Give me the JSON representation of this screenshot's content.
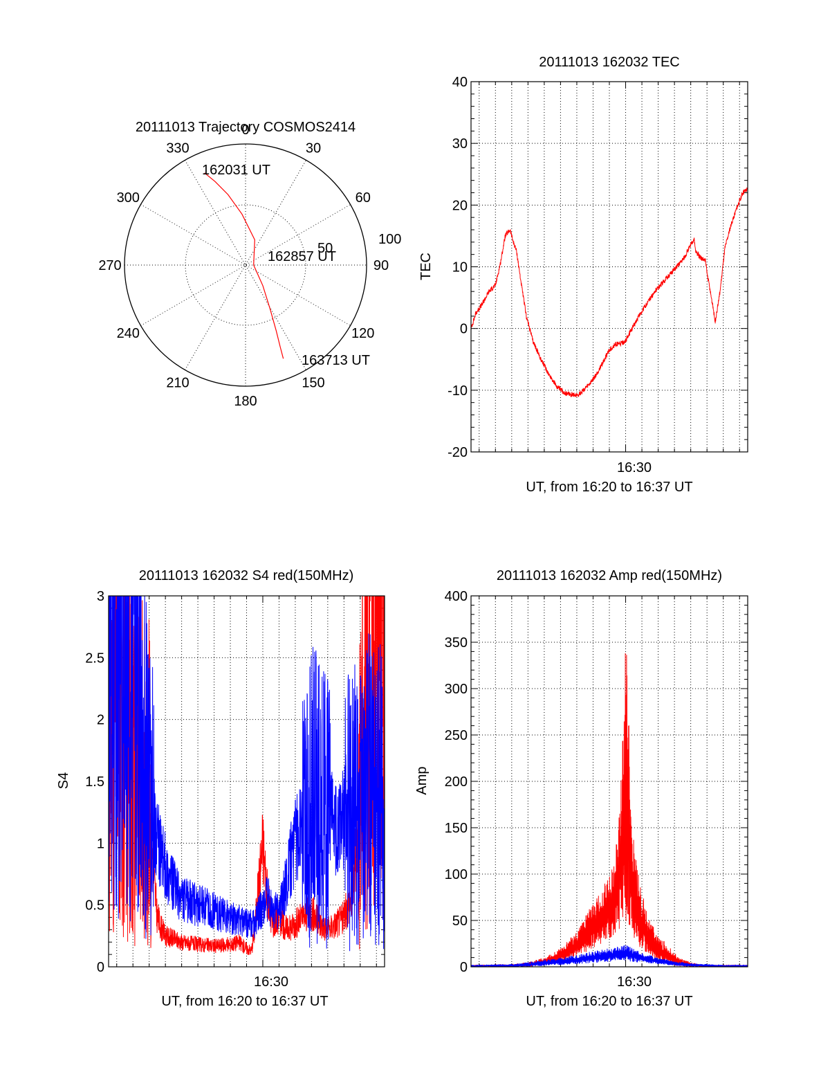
{
  "colors": {
    "red": "#ff0000",
    "blue": "#0000ff",
    "black": "#000000"
  },
  "chart_data": [
    {
      "type": "scatter",
      "projection": "polar",
      "title": "20111013 Trajectory COSMOS2414",
      "angle_labels": [
        "0",
        "30",
        "60",
        "90",
        "120",
        "150",
        "180",
        "210",
        "240",
        "270",
        "300",
        "330"
      ],
      "radius_labels": [
        "50",
        "100"
      ],
      "trajectory": {
        "color": "red",
        "start_label": "162031 UT",
        "mid_label": "162857 UT",
        "end_label": "163713 UT",
        "points": [
          {
            "az": 336,
            "el": 15
          },
          {
            "az": 340,
            "el": 24
          },
          {
            "az": 346,
            "el": 36
          },
          {
            "az": 356,
            "el": 52
          },
          {
            "az": 20,
            "el": 70
          },
          {
            "az": 90,
            "el": 84
          },
          {
            "az": 140,
            "el": 70
          },
          {
            "az": 151,
            "el": 52
          },
          {
            "az": 155,
            "el": 36
          },
          {
            "az": 157,
            "el": 24
          },
          {
            "az": 158,
            "el": 15
          }
        ]
      }
    },
    {
      "type": "line",
      "title": "20111013 162032 TEC",
      "ylabel": "TEC",
      "xlabel": "UT, from 16:20 to 16:37 UT",
      "x_tick_label": "16:30",
      "x_tick_value": 10,
      "xlim": [
        0.5,
        17.5
      ],
      "ylim": [
        -20,
        40
      ],
      "yticks": [
        "-20",
        "-10",
        "0",
        "10",
        "20",
        "30",
        "40"
      ],
      "series": [
        {
          "color": "red",
          "x": [
            0.5,
            0.8,
            1.2,
            1.6,
            2.0,
            2.3,
            2.6,
            2.9,
            3.1,
            3.3,
            3.6,
            3.9,
            4.3,
            4.8,
            5.3,
            5.8,
            6.3,
            6.8,
            7.1,
            7.4,
            7.8,
            8.2,
            8.6,
            9.0,
            9.4,
            9.7,
            10.0,
            10.3,
            10.8,
            11.3,
            11.8,
            12.3,
            12.8,
            13.3,
            13.6,
            13.9,
            14.2,
            14.3,
            14.6,
            14.9,
            15.0,
            15.2,
            15.4,
            15.5,
            15.8,
            16.1,
            16.5,
            16.9,
            17.2,
            17.5
          ],
          "y": [
            0.0,
            2.5,
            4.0,
            6.0,
            7.0,
            10.5,
            15.0,
            16.0,
            14.0,
            12.5,
            7.0,
            2.0,
            -2.0,
            -5.0,
            -7.5,
            -9.5,
            -10.5,
            -10.8,
            -10.7,
            -10.0,
            -9.0,
            -7.5,
            -5.5,
            -3.5,
            -2.5,
            -2.5,
            -2.0,
            -0.5,
            2.0,
            4.0,
            6.0,
            7.5,
            9.0,
            10.5,
            11.5,
            13.0,
            14.5,
            12.5,
            11.5,
            11.0,
            9.0,
            6.0,
            3.0,
            1.0,
            6.0,
            13.0,
            17.0,
            20.0,
            22.0,
            22.5
          ]
        }
      ]
    },
    {
      "type": "line",
      "title": "20111013 162032 S4 red(150MHz)",
      "ylabel": "S4",
      "xlabel": "UT, from 16:20 to 16:37 UT",
      "x_tick_label": "16:30",
      "x_tick_value": 10,
      "xlim": [
        0.5,
        17.5
      ],
      "ylim": [
        0,
        3
      ],
      "yticks": [
        "0",
        "0.5",
        "1",
        "1.5",
        "2",
        "2.5",
        "3"
      ],
      "series": [
        {
          "color": "red",
          "x": [
            0.5,
            3.0,
            3.3,
            3.5,
            3.8,
            4.0,
            5.0,
            6.0,
            7.0,
            8.0,
            8.5,
            9.0,
            9.3,
            9.5,
            9.7,
            10.0,
            10.3,
            10.6,
            11.0,
            11.5,
            12.0,
            12.5,
            13.0,
            13.5,
            14.0,
            14.5,
            15.0,
            15.5,
            15.8,
            16.2,
            16.6,
            17.0,
            17.5
          ],
          "y": [
            2.0,
            1.5,
            0.7,
            0.4,
            0.3,
            0.25,
            0.2,
            0.18,
            0.17,
            0.18,
            0.2,
            0.15,
            0.13,
            0.3,
            0.6,
            1.0,
            0.55,
            0.35,
            0.4,
            0.3,
            0.35,
            0.4,
            0.45,
            0.35,
            0.3,
            0.35,
            0.4,
            0.6,
            1.0,
            2.0,
            2.8,
            3.0,
            3.0
          ]
        },
        {
          "color": "blue",
          "x": [
            0.5,
            1.5,
            2.5,
            3.3,
            3.5,
            3.8,
            4.0,
            4.5,
            5.0,
            6.0,
            7.0,
            8.0,
            9.0,
            9.5,
            10.0,
            10.3,
            10.6,
            11.0,
            11.3,
            11.6,
            12.0,
            12.3,
            12.7,
            13.0,
            13.5,
            14.0,
            14.5,
            15.0,
            15.5,
            16.0,
            16.5,
            17.0,
            17.5
          ],
          "y": [
            2.8,
            2.5,
            2.0,
            1.2,
            1.0,
            0.9,
            0.8,
            0.65,
            0.55,
            0.5,
            0.45,
            0.4,
            0.35,
            0.35,
            0.5,
            0.55,
            0.45,
            0.45,
            0.6,
            0.8,
            1.0,
            1.15,
            1.3,
            1.4,
            1.35,
            1.25,
            1.1,
            1.2,
            1.3,
            1.35,
            1.45,
            1.4,
            1.35
          ]
        }
      ]
    },
    {
      "type": "line",
      "title": "20111013 162032 Amp red(150MHz)",
      "ylabel": "Amp",
      "xlabel": "UT, from 16:20 to 16:37 UT",
      "x_tick_label": "16:30",
      "x_tick_value": 10,
      "xlim": [
        0.5,
        17.5
      ],
      "ylim": [
        0,
        400
      ],
      "yticks": [
        "0",
        "50",
        "100",
        "150",
        "200",
        "250",
        "300",
        "350",
        "400"
      ],
      "series": [
        {
          "color": "red",
          "x": [
            0.5,
            3.0,
            4.0,
            5.0,
            6.0,
            7.0,
            7.5,
            8.0,
            8.5,
            9.0,
            9.3,
            9.6,
            9.8,
            10.0,
            10.2,
            10.4,
            10.7,
            11.0,
            11.5,
            12.0,
            12.5,
            13.0,
            13.5,
            14.0,
            14.5,
            15.0,
            16.0,
            17.5
          ],
          "y": [
            2,
            3,
            5,
            10,
            20,
            40,
            55,
            70,
            85,
            100,
            110,
            180,
            240,
            360,
            300,
            150,
            110,
            80,
            50,
            35,
            25,
            15,
            8,
            5,
            3,
            2,
            2,
            2
          ],
          "envelope_low": [
            0,
            0,
            0,
            2,
            5,
            10,
            15,
            20,
            25,
            30,
            35,
            40,
            45,
            50,
            45,
            35,
            25,
            18,
            10,
            5,
            3,
            1,
            0,
            0,
            0,
            0,
            0,
            0
          ]
        },
        {
          "color": "blue",
          "x": [
            0.5,
            3.0,
            4.0,
            5.0,
            6.0,
            7.0,
            8.0,
            9.0,
            9.5,
            10.0,
            10.5,
            11.0,
            12.0,
            13.0,
            14.0,
            15.0,
            16.0,
            17.5
          ],
          "y": [
            2,
            3,
            5,
            8,
            10,
            13,
            17,
            20,
            22,
            24,
            20,
            15,
            10,
            6,
            4,
            3,
            2,
            2
          ],
          "envelope_low": [
            0,
            0,
            0,
            1,
            2,
            3,
            4,
            5,
            6,
            6,
            5,
            4,
            3,
            1,
            0,
            0,
            0,
            0
          ]
        }
      ]
    }
  ]
}
